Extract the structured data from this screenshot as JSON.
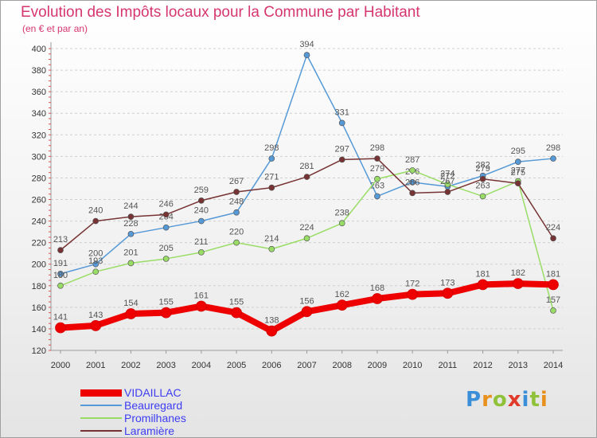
{
  "title": "Evolution des Impôts locaux pour la Commune par Habitant",
  "subtitle": "(en € et par an)",
  "logo": {
    "text": "Proxiti",
    "letters": [
      {
        "ch": "P",
        "color": "#3a8fd8"
      },
      {
        "ch": "r",
        "color": "#e8901e"
      },
      {
        "ch": "o",
        "color": "#8fc23a"
      },
      {
        "ch": "x",
        "color": "#e23a2a"
      },
      {
        "ch": "i",
        "color": "#3a8fd8"
      },
      {
        "ch": "t",
        "color": "#8fc23a"
      },
      {
        "ch": "i",
        "color": "#e8901e"
      }
    ]
  },
  "chart_data": {
    "type": "line",
    "title": "Evolution des Impôts locaux pour la Commune par Habitant",
    "subtitle": "(en € et par an)",
    "x": [
      "2000",
      "2001",
      "2002",
      "2003",
      "2004",
      "2005",
      "2006",
      "2007",
      "2008",
      "2009",
      "2010",
      "2011",
      "2012",
      "2013",
      "2014"
    ],
    "ylim": [
      120,
      400
    ],
    "yticks": [
      120,
      140,
      160,
      180,
      200,
      220,
      240,
      260,
      280,
      300,
      320,
      340,
      360,
      380,
      400
    ],
    "grid": "dashed-horizontal",
    "legend": "bottom-left",
    "series": [
      {
        "name": "VIDAILLAC",
        "color": "#ee0000",
        "width": 8,
        "values": [
          141,
          143,
          154,
          155,
          161,
          155,
          138,
          156,
          162,
          168,
          172,
          173,
          181,
          182,
          181
        ]
      },
      {
        "name": "Beauregard",
        "color": "#5599d6",
        "width": 1.5,
        "values": [
          191,
          200,
          228,
          234,
          240,
          248,
          298,
          394,
          331,
          263,
          276,
          272,
          282,
          295,
          298
        ]
      },
      {
        "name": "Promilhanes",
        "color": "#99dd66",
        "width": 1.5,
        "values": [
          180,
          193,
          201,
          205,
          211,
          220,
          214,
          224,
          238,
          279,
          287,
          274,
          263,
          277,
          157
        ]
      },
      {
        "name": "Laramière",
        "color": "#773333",
        "width": 1.5,
        "values": [
          213,
          240,
          244,
          246,
          259,
          267,
          271,
          281,
          297,
          298,
          266,
          267,
          279,
          275,
          224
        ]
      }
    ]
  }
}
